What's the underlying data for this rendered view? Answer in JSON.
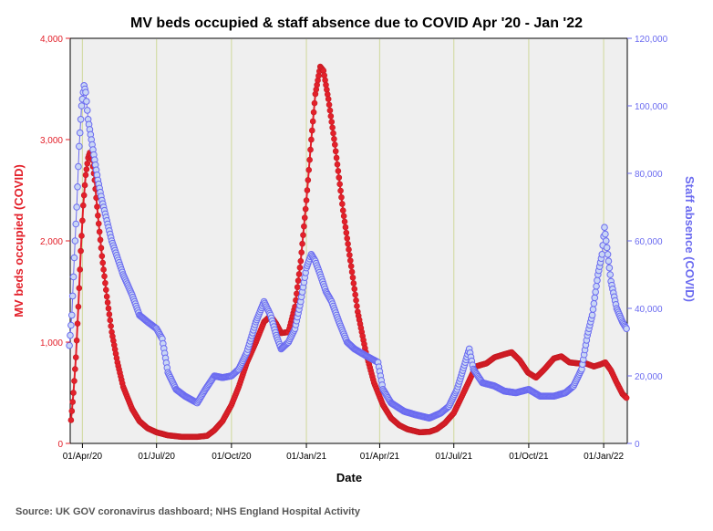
{
  "chart_data": {
    "type": "line",
    "title": "MV beds occupied & staff absence due to COVID Apr '20 - Jan '22",
    "xlabel": "Date",
    "ylabel_left": "MV beds occupied (COVID)",
    "ylabel_right": "Staff absence (COVID)",
    "source": "Source: UK GOV coronavirus dashboard; NHS England Hospital Activity",
    "x_range": [
      "2020-03-17",
      "2022-01-30"
    ],
    "y_left_range": [
      0,
      4000
    ],
    "y_right_range": [
      0,
      120000
    ],
    "x_ticks": [
      {
        "date": "2020-04-01",
        "label": "01/Apr/20"
      },
      {
        "date": "2020-07-01",
        "label": "01/Jul/20"
      },
      {
        "date": "2020-10-01",
        "label": "01/Oct/20"
      },
      {
        "date": "2021-01-01",
        "label": "01/Jan/21"
      },
      {
        "date": "2021-04-01",
        "label": "01/Apr/21"
      },
      {
        "date": "2021-07-01",
        "label": "01/Jul/21"
      },
      {
        "date": "2021-10-01",
        "label": "01/Oct/21"
      },
      {
        "date": "2022-01-01",
        "label": "01/Jan/22"
      }
    ],
    "y_left_ticks": [
      {
        "value": 0,
        "label": "0"
      },
      {
        "value": 1000,
        "label": "1,000"
      },
      {
        "value": 2000,
        "label": "2,000"
      },
      {
        "value": 3000,
        "label": "3,000"
      },
      {
        "value": 4000,
        "label": "4,000"
      }
    ],
    "y_right_ticks": [
      {
        "value": 0,
        "label": "0"
      },
      {
        "value": 20000,
        "label": "20,000"
      },
      {
        "value": 40000,
        "label": "40,000"
      },
      {
        "value": 60000,
        "label": "60,000"
      },
      {
        "value": 80000,
        "label": "80,000"
      },
      {
        "value": 100000,
        "label": "100,000"
      },
      {
        "value": 120000,
        "label": "120,000"
      }
    ],
    "vertical_reference_lines": [
      "2020-04-01",
      "2020-07-01",
      "2020-10-01",
      "2021-01-01",
      "2021-04-01",
      "2021-07-01",
      "2021-10-01",
      "2022-01-01"
    ],
    "grid": false,
    "series": [
      {
        "name": "MV beds occupied (COVID)",
        "axis": "left",
        "color": "#e3202a",
        "points": [
          [
            "2020-03-18",
            230
          ],
          [
            "2020-03-21",
            500
          ],
          [
            "2020-03-24",
            850
          ],
          [
            "2020-03-27",
            1350
          ],
          [
            "2020-03-30",
            1900
          ],
          [
            "2020-04-02",
            2350
          ],
          [
            "2020-04-05",
            2650
          ],
          [
            "2020-04-08",
            2820
          ],
          [
            "2020-04-10",
            2870
          ],
          [
            "2020-04-13",
            2800
          ],
          [
            "2020-04-16",
            2600
          ],
          [
            "2020-04-20",
            2250
          ],
          [
            "2020-04-25",
            1850
          ],
          [
            "2020-05-01",
            1450
          ],
          [
            "2020-05-07",
            1100
          ],
          [
            "2020-05-14",
            800
          ],
          [
            "2020-05-21",
            560
          ],
          [
            "2020-06-01",
            340
          ],
          [
            "2020-06-10",
            220
          ],
          [
            "2020-06-20",
            150
          ],
          [
            "2020-07-01",
            110
          ],
          [
            "2020-07-15",
            80
          ],
          [
            "2020-08-01",
            65
          ],
          [
            "2020-08-20",
            65
          ],
          [
            "2020-09-01",
            75
          ],
          [
            "2020-09-10",
            130
          ],
          [
            "2020-09-20",
            220
          ],
          [
            "2020-10-01",
            380
          ],
          [
            "2020-10-10",
            560
          ],
          [
            "2020-10-20",
            800
          ],
          [
            "2020-10-31",
            1000
          ],
          [
            "2020-11-10",
            1200
          ],
          [
            "2020-11-18",
            1260
          ],
          [
            "2020-11-25",
            1180
          ],
          [
            "2020-12-01",
            1090
          ],
          [
            "2020-12-10",
            1100
          ],
          [
            "2020-12-18",
            1350
          ],
          [
            "2020-12-25",
            1800
          ],
          [
            "2021-01-01",
            2400
          ],
          [
            "2021-01-07",
            3000
          ],
          [
            "2021-01-12",
            3450
          ],
          [
            "2021-01-18",
            3720
          ],
          [
            "2021-01-22",
            3680
          ],
          [
            "2021-01-28",
            3400
          ],
          [
            "2021-02-05",
            2950
          ],
          [
            "2021-02-15",
            2300
          ],
          [
            "2021-02-25",
            1750
          ],
          [
            "2021-03-05",
            1300
          ],
          [
            "2021-03-15",
            900
          ],
          [
            "2021-03-25",
            600
          ],
          [
            "2021-04-05",
            380
          ],
          [
            "2021-04-15",
            250
          ],
          [
            "2021-04-25",
            180
          ],
          [
            "2021-05-05",
            140
          ],
          [
            "2021-05-20",
            110
          ],
          [
            "2021-06-01",
            115
          ],
          [
            "2021-06-10",
            140
          ],
          [
            "2021-06-20",
            200
          ],
          [
            "2021-07-01",
            300
          ],
          [
            "2021-07-10",
            450
          ],
          [
            "2021-07-20",
            620
          ],
          [
            "2021-07-28",
            760
          ],
          [
            "2021-08-10",
            790
          ],
          [
            "2021-08-20",
            850
          ],
          [
            "2021-09-01",
            880
          ],
          [
            "2021-09-10",
            900
          ],
          [
            "2021-09-20",
            820
          ],
          [
            "2021-09-30",
            700
          ],
          [
            "2021-10-10",
            650
          ],
          [
            "2021-10-20",
            730
          ],
          [
            "2021-11-01",
            840
          ],
          [
            "2021-11-10",
            860
          ],
          [
            "2021-11-20",
            800
          ],
          [
            "2021-12-01",
            790
          ],
          [
            "2021-12-10",
            790
          ],
          [
            "2021-12-20",
            760
          ],
          [
            "2021-12-28",
            780
          ],
          [
            "2022-01-03",
            800
          ],
          [
            "2022-01-10",
            720
          ],
          [
            "2022-01-17",
            600
          ],
          [
            "2022-01-24",
            490
          ],
          [
            "2022-01-29",
            450
          ]
        ]
      },
      {
        "name": "Staff absence (COVID)",
        "axis": "right",
        "color": "#6b6bf0",
        "points": [
          [
            "2020-03-16",
            29000
          ],
          [
            "2020-03-19",
            38000
          ],
          [
            "2020-03-22",
            55000
          ],
          [
            "2020-03-25",
            70000
          ],
          [
            "2020-03-28",
            88000
          ],
          [
            "2020-03-31",
            100000
          ],
          [
            "2020-04-03",
            106000
          ],
          [
            "2020-04-05",
            104000
          ],
          [
            "2020-04-08",
            96000
          ],
          [
            "2020-04-12",
            90000
          ],
          [
            "2020-04-16",
            84000
          ],
          [
            "2020-04-20",
            78000
          ],
          [
            "2020-04-25",
            72000
          ],
          [
            "2020-05-01",
            66000
          ],
          [
            "2020-05-07",
            60000
          ],
          [
            "2020-05-14",
            55000
          ],
          [
            "2020-05-21",
            50000
          ],
          [
            "2020-06-01",
            44000
          ],
          [
            "2020-06-10",
            38000
          ],
          [
            "2020-06-20",
            36000
          ],
          [
            "2020-07-01",
            34000
          ],
          [
            "2020-07-08",
            31000
          ],
          [
            "2020-07-15",
            21000
          ],
          [
            "2020-07-25",
            16000
          ],
          [
            "2020-08-05",
            14000
          ],
          [
            "2020-08-20",
            12000
          ],
          [
            "2020-08-30",
            16000
          ],
          [
            "2020-09-10",
            20000
          ],
          [
            "2020-09-20",
            19500
          ],
          [
            "2020-10-01",
            20000
          ],
          [
            "2020-10-10",
            22000
          ],
          [
            "2020-10-20",
            27000
          ],
          [
            "2020-10-31",
            36000
          ],
          [
            "2020-11-10",
            42000
          ],
          [
            "2020-11-18",
            38000
          ],
          [
            "2020-11-25",
            32000
          ],
          [
            "2020-12-01",
            28000
          ],
          [
            "2020-12-10",
            30000
          ],
          [
            "2020-12-18",
            34000
          ],
          [
            "2020-12-25",
            42000
          ],
          [
            "2021-01-01",
            52000
          ],
          [
            "2021-01-07",
            56000
          ],
          [
            "2021-01-12",
            54000
          ],
          [
            "2021-01-18",
            50000
          ],
          [
            "2021-01-25",
            45000
          ],
          [
            "2021-02-01",
            42000
          ],
          [
            "2021-02-10",
            36000
          ],
          [
            "2021-02-20",
            30000
          ],
          [
            "2021-03-01",
            28000
          ],
          [
            "2021-03-15",
            26000
          ],
          [
            "2021-03-30",
            24000
          ],
          [
            "2021-04-05",
            16000
          ],
          [
            "2021-04-15",
            12000
          ],
          [
            "2021-05-01",
            9500
          ],
          [
            "2021-05-15",
            8500
          ],
          [
            "2021-06-01",
            7500
          ],
          [
            "2021-06-15",
            9000
          ],
          [
            "2021-06-25",
            11000
          ],
          [
            "2021-07-05",
            16000
          ],
          [
            "2021-07-15",
            24000
          ],
          [
            "2021-07-20",
            28000
          ],
          [
            "2021-07-25",
            22000
          ],
          [
            "2021-08-05",
            18000
          ],
          [
            "2021-08-20",
            17000
          ],
          [
            "2021-09-01",
            15500
          ],
          [
            "2021-09-15",
            15000
          ],
          [
            "2021-10-01",
            16000
          ],
          [
            "2021-10-15",
            14000
          ],
          [
            "2021-11-01",
            14000
          ],
          [
            "2021-11-15",
            15000
          ],
          [
            "2021-11-25",
            17000
          ],
          [
            "2021-12-05",
            22000
          ],
          [
            "2021-12-12",
            32000
          ],
          [
            "2021-12-18",
            38000
          ],
          [
            "2021-12-25",
            50000
          ],
          [
            "2021-12-30",
            56000
          ],
          [
            "2022-01-02",
            64000
          ],
          [
            "2022-01-05",
            58000
          ],
          [
            "2022-01-10",
            48000
          ],
          [
            "2022-01-17",
            40000
          ],
          [
            "2022-01-24",
            36000
          ],
          [
            "2022-01-29",
            34000
          ]
        ]
      }
    ]
  }
}
